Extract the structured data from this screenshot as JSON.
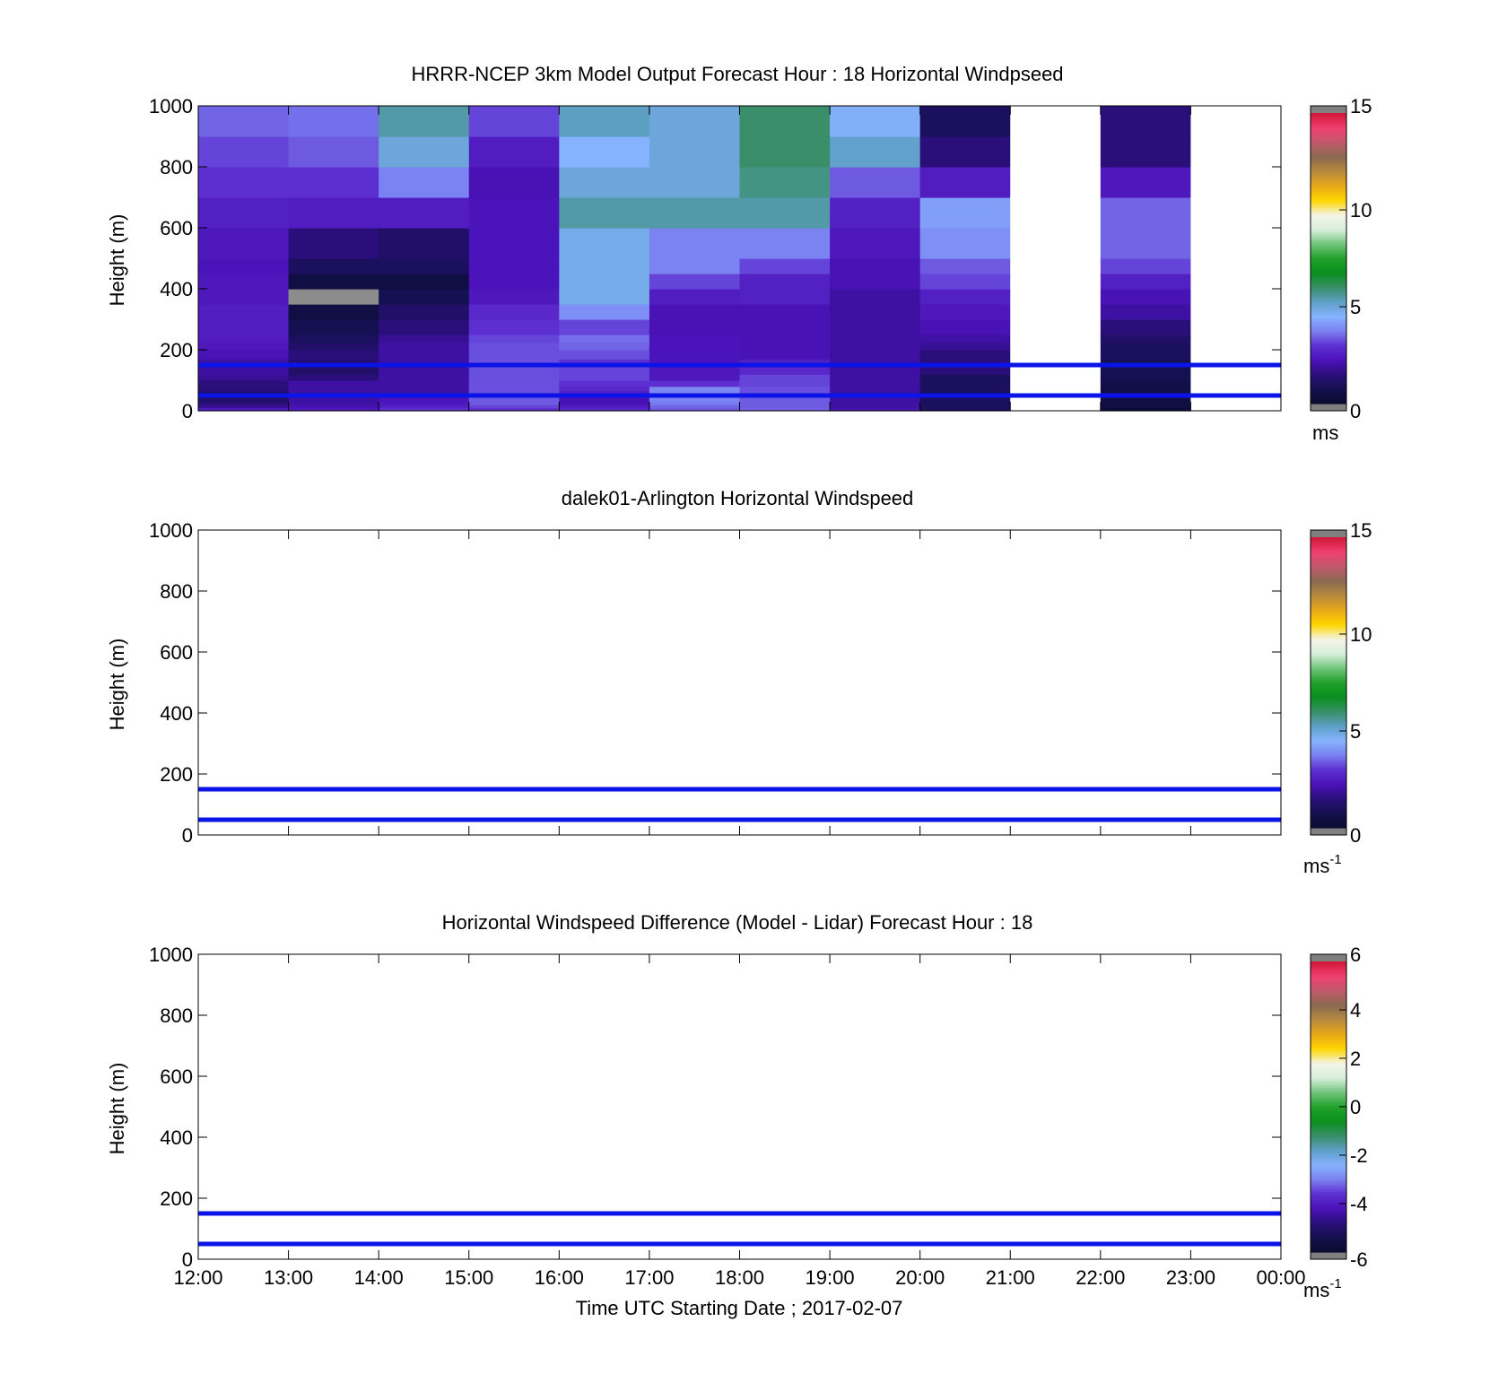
{
  "chart_data": [
    {
      "type": "heatmap",
      "title": "HRRR-NCEP 3km Model Output   Forecast Hour : 18 Horizontal Windpseed",
      "ylabel": "Height (m)",
      "xlabel": "",
      "x_ticks": [
        "",
        "",
        "",
        "",
        "",
        "",
        "",
        "",
        "",
        "",
        "",
        "",
        ""
      ],
      "y_ticks": [
        "0",
        "200",
        "400",
        "600",
        "800",
        "1000"
      ],
      "ylim": [
        0,
        1000
      ],
      "colorbar": {
        "min": 0,
        "max": 15,
        "ticks": [
          "0",
          "5",
          "10",
          "15"
        ],
        "unit": "ms",
        "unit_sup": ""
      },
      "reference_lines_m": [
        50,
        150
      ],
      "reference_line_color": "#0a14e8",
      "grid": {
        "level_edges_m": [
          0,
          10,
          20,
          30,
          40,
          50,
          65,
          80,
          100,
          120,
          150,
          170,
          200,
          225,
          250,
          300,
          350,
          400,
          450,
          500,
          600,
          700,
          800,
          900,
          1000
        ],
        "hour_columns": [
          {
            "hour": "12:00",
            "speeds": [
              2.5,
              1.8,
              1.5,
              1.2,
              1.0,
              1.2,
              1.5,
              1.5,
              1.8,
              2.0,
              2.0,
              2.2,
              2.4,
              2.5,
              2.5,
              2.5,
              2.4,
              2.4,
              2.3,
              2.4,
              2.6,
              3.0,
              3.2,
              3.5
            ]
          },
          {
            "hour": "13:00",
            "speeds": [
              2.4,
              2.2,
              2.0,
              2.0,
              2.0,
              2.0,
              2.0,
              2.0,
              1.5,
              1.2,
              1.3,
              1.5,
              1.2,
              1.0,
              0.8,
              0.5,
              "m",
              0.5,
              1.0,
              1.5,
              2.5,
              3.0,
              3.4,
              3.6
            ]
          },
          {
            "hour": "14:00",
            "speeds": [
              3.0,
              2.6,
              2.4,
              2.3,
              2.2,
              2.0,
              2.0,
              2.0,
              2.0,
              2.0,
              2.0,
              2.0,
              2.0,
              1.8,
              1.5,
              1.2,
              0.8,
              0.5,
              1.0,
              1.2,
              2.5,
              3.8,
              5.0,
              5.5
            ]
          },
          {
            "hour": "15:00",
            "speeds": [
              3.0,
              3.2,
              3.4,
              3.4,
              3.4,
              3.3,
              3.3,
              3.3,
              3.3,
              3.3,
              3.3,
              3.3,
              3.3,
              3.2,
              3.0,
              2.8,
              2.4,
              2.3,
              2.3,
              2.3,
              2.3,
              2.2,
              2.5,
              3.2
            ]
          },
          {
            "hour": "16:00",
            "speeds": [
              2.8,
              2.5,
              2.2,
              2.2,
              2.3,
              2.5,
              2.8,
              3.0,
              3.2,
              3.2,
              3.0,
              3.3,
              3.5,
              3.6,
              3.2,
              4.0,
              4.8,
              4.8,
              4.8,
              4.8,
              5.5,
              5.0,
              4.5,
              5.3
            ]
          },
          {
            "hour": "17:00",
            "speeds": [
              3.4,
              3.5,
              3.7,
              3.8,
              3.8,
              3.8,
              3.9,
              3.0,
              2.4,
              2.4,
              2.3,
              2.3,
              2.3,
              2.3,
              2.2,
              2.2,
              2.5,
              3.2,
              3.8,
              3.8,
              5.5,
              5.0,
              5.0,
              5.0
            ]
          },
          {
            "hour": "18:00",
            "speeds": [
              3.5,
              3.4,
              3.4,
              3.4,
              3.4,
              3.3,
              3.3,
              3.2,
              3.2,
              2.8,
              2.6,
              2.2,
              2.2,
              2.2,
              2.2,
              2.2,
              2.6,
              2.6,
              3.2,
              3.8,
              5.5,
              5.8,
              6.0,
              6.0
            ]
          },
          {
            "hour": "19:00",
            "speeds": [
              2.2,
              2.0,
              2.0,
              2.0,
              2.0,
              2.0,
              2.0,
              2.0,
              2.0,
              2.0,
              2.0,
              2.0,
              2.0,
              2.0,
              2.0,
              2.0,
              2.0,
              2.2,
              2.2,
              2.4,
              2.6,
              3.4,
              5.2,
              4.6
            ]
          },
          {
            "hour": "20:00",
            "speeds": [
              1.0,
              1.0,
              1.0,
              1.0,
              1.0,
              1.0,
              1.0,
              1.0,
              1.0,
              1.5,
              1.5,
              1.5,
              1.8,
              2.0,
              2.2,
              2.4,
              2.6,
              3.2,
              3.4,
              4.0,
              4.2,
              2.5,
              1.5,
              1.0
            ]
          },
          {
            "hour": "21:00",
            "speeds": [
              "m",
              "m",
              "m",
              "m",
              "m",
              "m",
              "m",
              "m",
              "m",
              "m",
              "m",
              "m",
              "m",
              "m",
              "m",
              "m",
              "m",
              "m",
              "m",
              "m",
              "m",
              "m",
              "m",
              "m"
            ]
          },
          {
            "hour": "22:00",
            "speeds": [
              0.2,
              0.5,
              0.5,
              0.5,
              0.5,
              0.6,
              0.6,
              0.6,
              0.8,
              0.8,
              0.8,
              1.0,
              1.0,
              1.2,
              1.5,
              2.0,
              2.2,
              2.6,
              3.2,
              3.5,
              3.5,
              2.4,
              1.5,
              1.5
            ]
          },
          {
            "hour": "23:00",
            "speeds": [
              "m",
              "m",
              "m",
              "m",
              "m",
              "m",
              "m",
              "m",
              "m",
              "m",
              "m",
              "m",
              "m",
              "m",
              "m",
              "m",
              "m",
              "m",
              "m",
              "m",
              "m",
              "m",
              "m",
              "m"
            ]
          }
        ]
      }
    },
    {
      "type": "heatmap",
      "title": "dalek01-Arlington  Horizontal Windspeed",
      "ylabel": "Height (m)",
      "xlabel": "",
      "x_ticks": [
        "",
        "",
        "",
        "",
        "",
        "",
        "",
        "",
        "",
        "",
        "",
        "",
        ""
      ],
      "y_ticks": [
        "0",
        "200",
        "400",
        "600",
        "800",
        "1000"
      ],
      "ylim": [
        0,
        1000
      ],
      "colorbar": {
        "min": 0,
        "max": 15,
        "ticks": [
          "0",
          "5",
          "10",
          "15"
        ],
        "unit": "ms",
        "unit_sup": "-1"
      },
      "reference_lines_m": [
        50,
        150
      ],
      "reference_line_color": "#0a14e8",
      "grid": null
    },
    {
      "type": "heatmap",
      "title": "Horizontal Windspeed Difference (Model - Lidar) Forecast Hour : 18",
      "ylabel": "Height (m)",
      "xlabel": "Time UTC  Starting Date ; 2017-02-07",
      "x_ticks": [
        "12:00",
        "13:00",
        "14:00",
        "15:00",
        "16:00",
        "17:00",
        "18:00",
        "19:00",
        "20:00",
        "21:00",
        "22:00",
        "23:00",
        "00:00"
      ],
      "y_ticks": [
        "0",
        "200",
        "400",
        "600",
        "800",
        "1000"
      ],
      "ylim": [
        0,
        1000
      ],
      "colorbar": {
        "min": -6,
        "max": 6,
        "ticks": [
          "-6",
          "-4",
          "-2",
          "0",
          "2",
          "4",
          "6"
        ],
        "unit": "ms",
        "unit_sup": "-1"
      },
      "reference_lines_m": [
        50,
        150
      ],
      "reference_line_color": "#0a14e8",
      "grid": null
    }
  ],
  "colormap": [
    "#808080",
    "#0b0b2e",
    "#14104e",
    "#2a0f7a",
    "#4a12b8",
    "#5e2fd0",
    "#7a7ff0",
    "#86b3ff",
    "#5fa0c8",
    "#3a8f6a",
    "#0a8f1f",
    "#1fa02a",
    "#6fc47a",
    "#d8efdc",
    "#f4f4e8",
    "#ffd600",
    "#e8a818",
    "#b88a3e",
    "#8a6a50",
    "#c05a6a",
    "#f04070",
    "#d01838",
    "#808080"
  ],
  "missing_color": "#8c8c8c"
}
